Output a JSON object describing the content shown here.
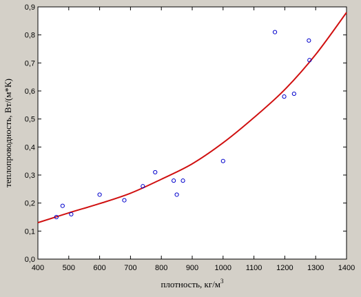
{
  "chart_data": {
    "type": "scatter",
    "xlabel": "плотность, кг/м",
    "xlabel_superscript": "3",
    "ylabel": "теплопроводность,  Вт/(м*К)",
    "xlim": [
      400,
      1400
    ],
    "ylim": [
      0.0,
      0.9
    ],
    "x_ticks": [
      400,
      500,
      600,
      700,
      800,
      900,
      1000,
      1100,
      1200,
      1300,
      1400
    ],
    "y_ticks": [
      0.0,
      0.1,
      0.2,
      0.3,
      0.4,
      0.5,
      0.6,
      0.7,
      0.8,
      0.9
    ],
    "x_tick_labels": [
      "400",
      "500",
      "600",
      "700",
      "800",
      "900",
      "1000",
      "1100",
      "1200",
      "1300",
      "1400"
    ],
    "y_tick_labels": [
      "0,0",
      "0,1",
      "0,2",
      "0,3",
      "0,4",
      "0,5",
      "0,6",
      "0,7",
      "0,8",
      "0,9"
    ],
    "grid": false,
    "points": [
      {
        "x": 460,
        "y": 0.15
      },
      {
        "x": 480,
        "y": 0.19
      },
      {
        "x": 508,
        "y": 0.16
      },
      {
        "x": 600,
        "y": 0.23
      },
      {
        "x": 680,
        "y": 0.21
      },
      {
        "x": 740,
        "y": 0.26
      },
      {
        "x": 780,
        "y": 0.31
      },
      {
        "x": 840,
        "y": 0.28
      },
      {
        "x": 850,
        "y": 0.23
      },
      {
        "x": 870,
        "y": 0.28
      },
      {
        "x": 1000,
        "y": 0.35
      },
      {
        "x": 1168,
        "y": 0.81
      },
      {
        "x": 1198,
        "y": 0.58
      },
      {
        "x": 1230,
        "y": 0.59
      },
      {
        "x": 1278,
        "y": 0.78
      },
      {
        "x": 1280,
        "y": 0.71
      }
    ],
    "fit_curve": {
      "type": "exponential",
      "x": [
        400,
        500,
        600,
        700,
        800,
        900,
        1000,
        1100,
        1200,
        1300,
        1400
      ],
      "y": [
        0.13,
        0.165,
        0.198,
        0.235,
        0.285,
        0.34,
        0.415,
        0.505,
        0.605,
        0.73,
        0.88
      ]
    },
    "colors": {
      "background": "#d4d0c8",
      "plot_area": "#ffffff",
      "markers": "#0000cc",
      "fit_line": "#d01010",
      "axes": "#000000"
    }
  }
}
